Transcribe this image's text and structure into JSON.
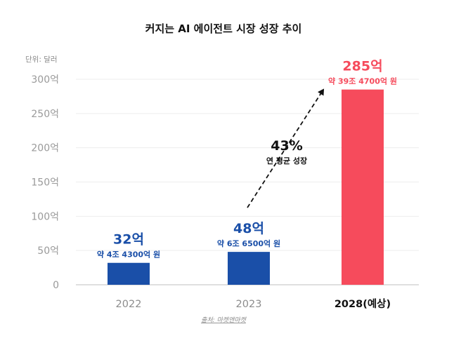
{
  "chart_data": {
    "type": "bar",
    "title": "커지는 AI 에이전트 시장 성장 추이",
    "unit_label": "단위: 달러",
    "y_ticks": [
      "0",
      "50억",
      "100억",
      "150억",
      "200억",
      "250억",
      "300억"
    ],
    "ylim": [
      0,
      300
    ],
    "grid": true,
    "categories": [
      "2022",
      "2023",
      "2028(예상)"
    ],
    "values": [
      32,
      48,
      285
    ],
    "value_labels": [
      "32억",
      "48억",
      "285억"
    ],
    "sub_labels": [
      "약 4조 4300억 원",
      "약 6조 6500억 원",
      "약 39조 4700억 원"
    ],
    "bar_colors": [
      "#1a4fa8",
      "#1a4fa8",
      "#f64b5c"
    ],
    "label_colors": [
      "#1a4fa8",
      "#1a4fa8",
      "#f64b5c"
    ],
    "emphasized_category": "2028(예상)",
    "annotation": {
      "value": "43%",
      "label": "연 평균 성장",
      "from_category": "2023",
      "to_category": "2028(예상)"
    },
    "source": "출처: 마켓앤마켓"
  }
}
